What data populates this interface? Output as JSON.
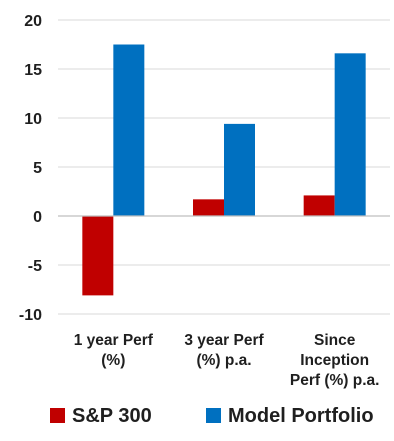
{
  "chart_data": {
    "type": "bar",
    "categories": [
      [
        "1 year Perf",
        "(%)"
      ],
      [
        "3 year Perf",
        "(%) p.a."
      ],
      [
        "Since",
        "Inception",
        "Perf (%) p.a."
      ]
    ],
    "series": [
      {
        "name": "S&P 300",
        "color": "#c00000",
        "values": [
          -8.1,
          1.7,
          2.1
        ]
      },
      {
        "name": "Model Portfolio",
        "color": "#0070c0",
        "values": [
          17.5,
          9.4,
          16.6
        ]
      }
    ],
    "ylim": [
      -10,
      20
    ],
    "yticks": [
      -10,
      -5,
      0,
      5,
      10,
      15,
      20
    ],
    "grid": true,
    "legend_position": "bottom"
  }
}
